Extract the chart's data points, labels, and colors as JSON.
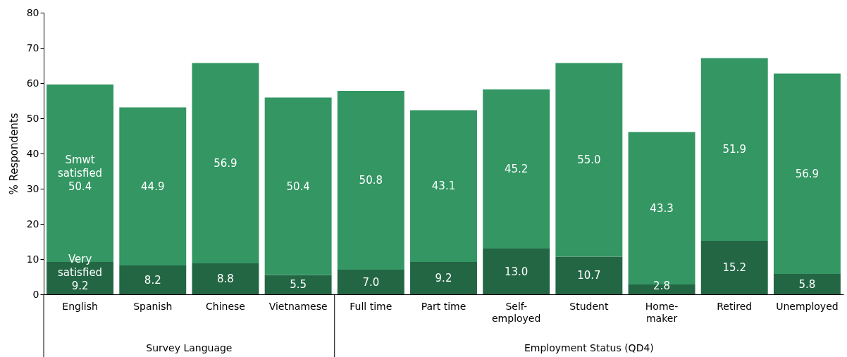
{
  "chart_data": {
    "type": "bar",
    "stacked": true,
    "ylabel": "% Respondents",
    "categories": [
      "English",
      "Spanish",
      "Chinese",
      "Vietnamese",
      "Full time",
      "Part time",
      "Self-employed",
      "Student",
      "Home-maker",
      "Retired",
      "Unemployed"
    ],
    "series": [
      {
        "name": "Very satisfied",
        "color": "#236644",
        "values": [
          9.2,
          8.2,
          8.8,
          5.5,
          7.0,
          9.2,
          13.0,
          10.7,
          2.8,
          15.2,
          5.8
        ],
        "value_labels": [
          "9.2",
          "8.2",
          "8.8",
          "5.5",
          "7.0",
          "9.2",
          "13.0",
          "10.7",
          "2.8",
          "15.2",
          "5.8"
        ]
      },
      {
        "name": "Smwt satisfied",
        "color": "#339663",
        "values": [
          50.4,
          44.9,
          56.9,
          50.4,
          50.8,
          43.1,
          45.2,
          55.0,
          43.3,
          51.9,
          56.9
        ],
        "value_labels": [
          "50.4",
          "44.9",
          "56.9",
          "50.4",
          "50.8",
          "43.1",
          "45.2",
          "55.0",
          "43.3",
          "51.9",
          "56.9"
        ]
      }
    ],
    "ylim": [
      0,
      80
    ],
    "yticks": [
      0,
      10,
      20,
      30,
      40,
      50,
      60,
      70,
      80
    ],
    "grid": false,
    "annotations": [
      "Survey Language",
      "Employment Status (QD4)"
    ]
  }
}
